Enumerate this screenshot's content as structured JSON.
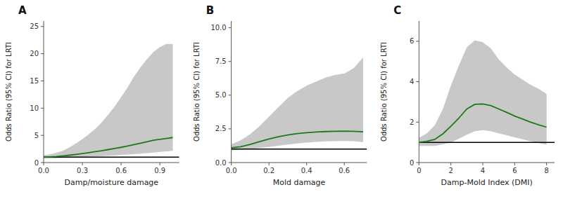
{
  "chart_data": [
    {
      "type": "line",
      "title": "A",
      "xlabel": "Damp/moisture damage",
      "ylabel": "Odds Ratio (95% CI) for LRTI",
      "x": [
        0.0,
        0.05,
        0.1,
        0.15,
        0.2,
        0.25,
        0.3,
        0.35,
        0.4,
        0.45,
        0.5,
        0.55,
        0.6,
        0.65,
        0.7,
        0.75,
        0.8,
        0.85,
        0.9,
        0.95,
        1.0
      ],
      "series": [
        {
          "type": "area",
          "color": "#c8c8c8",
          "lower": [
            0.75,
            0.78,
            0.82,
            0.86,
            0.9,
            0.95,
            1.0,
            1.05,
            1.12,
            1.18,
            1.25,
            1.32,
            1.4,
            1.48,
            1.56,
            1.65,
            1.75,
            1.85,
            1.95,
            2.05,
            2.15
          ],
          "upper": [
            1.35,
            1.5,
            1.8,
            2.2,
            2.8,
            3.5,
            4.3,
            5.2,
            6.2,
            7.4,
            8.8,
            10.3,
            12.0,
            13.8,
            15.8,
            17.5,
            19.0,
            20.3,
            21.2,
            21.8,
            21.8
          ]
        },
        {
          "type": "reference",
          "color": "#000000",
          "value": 1.0
        },
        {
          "type": "line",
          "color": "#1a7a1a",
          "values": [
            1.0,
            1.05,
            1.12,
            1.22,
            1.35,
            1.5,
            1.65,
            1.82,
            2.0,
            2.18,
            2.38,
            2.58,
            2.8,
            3.05,
            3.3,
            3.55,
            3.82,
            4.1,
            4.25,
            4.42,
            4.6
          ]
        }
      ],
      "xlim": [
        0.0,
        1.05
      ],
      "ylim": [
        0,
        26
      ],
      "xticks": [
        {
          "value": 0.0,
          "label": "0.0"
        },
        0.3,
        0.6,
        0.9
      ],
      "yticks": [
        0,
        5,
        10,
        15,
        20,
        25
      ]
    },
    {
      "type": "line",
      "title": "B",
      "xlabel": "Mold damage",
      "ylabel": "Odds Ratio (95% CI) for LRTI",
      "x": [
        0.0,
        0.05,
        0.1,
        0.15,
        0.2,
        0.25,
        0.3,
        0.35,
        0.4,
        0.45,
        0.5,
        0.55,
        0.6,
        0.65,
        0.7
      ],
      "series": [
        {
          "type": "area",
          "color": "#c8c8c8",
          "lower": [
            0.92,
            0.95,
            1.0,
            1.08,
            1.16,
            1.25,
            1.34,
            1.42,
            1.48,
            1.53,
            1.57,
            1.59,
            1.6,
            1.58,
            1.52
          ],
          "upper": [
            1.35,
            1.65,
            2.1,
            2.7,
            3.4,
            4.1,
            4.8,
            5.3,
            5.7,
            6.0,
            6.3,
            6.5,
            6.6,
            7.0,
            7.8
          ]
        },
        {
          "type": "reference",
          "color": "#000000",
          "value": 1.0
        },
        {
          "type": "line",
          "color": "#1a7a1a",
          "values": [
            1.1,
            1.18,
            1.35,
            1.55,
            1.75,
            1.92,
            2.05,
            2.15,
            2.22,
            2.27,
            2.3,
            2.32,
            2.33,
            2.32,
            2.28
          ]
        }
      ],
      "xlim": [
        0.0,
        0.72
      ],
      "ylim": [
        0,
        10.5
      ],
      "xticks": [
        {
          "value": 0.0,
          "label": "0.0"
        },
        0.2,
        0.4,
        0.6
      ],
      "yticks": [
        {
          "value": 0.0,
          "label": "0.0"
        },
        2.5,
        {
          "value": 5.0,
          "label": "5.0"
        },
        7.5,
        {
          "value": 10.0,
          "label": "10.0"
        }
      ]
    },
    {
      "type": "line",
      "title": "C",
      "xlabel": "Damp-Mold Index (DMI)",
      "ylabel": "Odds Ratio (95% CI) for LRTI",
      "x": [
        0.0,
        0.5,
        1.0,
        1.5,
        2.0,
        2.5,
        3.0,
        3.5,
        4.0,
        4.5,
        5.0,
        5.5,
        6.0,
        6.5,
        7.0,
        7.5,
        8.0
      ],
      "series": [
        {
          "type": "area",
          "color": "#c8c8c8",
          "lower": [
            0.82,
            0.82,
            0.82,
            0.9,
            1.0,
            1.18,
            1.38,
            1.55,
            1.6,
            1.55,
            1.45,
            1.35,
            1.25,
            1.15,
            1.05,
            0.96,
            0.88
          ],
          "upper": [
            1.22,
            1.45,
            1.85,
            2.65,
            3.8,
            4.8,
            5.7,
            6.05,
            5.95,
            5.65,
            5.1,
            4.7,
            4.35,
            4.1,
            3.85,
            3.65,
            3.4
          ]
        },
        {
          "type": "reference",
          "color": "#000000",
          "value": 1.0
        },
        {
          "type": "line",
          "color": "#1a7a1a",
          "values": [
            1.0,
            1.05,
            1.15,
            1.42,
            1.8,
            2.2,
            2.65,
            2.88,
            2.9,
            2.82,
            2.65,
            2.48,
            2.3,
            2.15,
            2.0,
            1.87,
            1.75
          ]
        }
      ],
      "xlim": [
        0.0,
        8.5
      ],
      "ylim": [
        0,
        7
      ],
      "xticks": [
        0,
        2,
        4,
        6,
        8
      ],
      "yticks": [
        0,
        2,
        4,
        6
      ]
    }
  ]
}
